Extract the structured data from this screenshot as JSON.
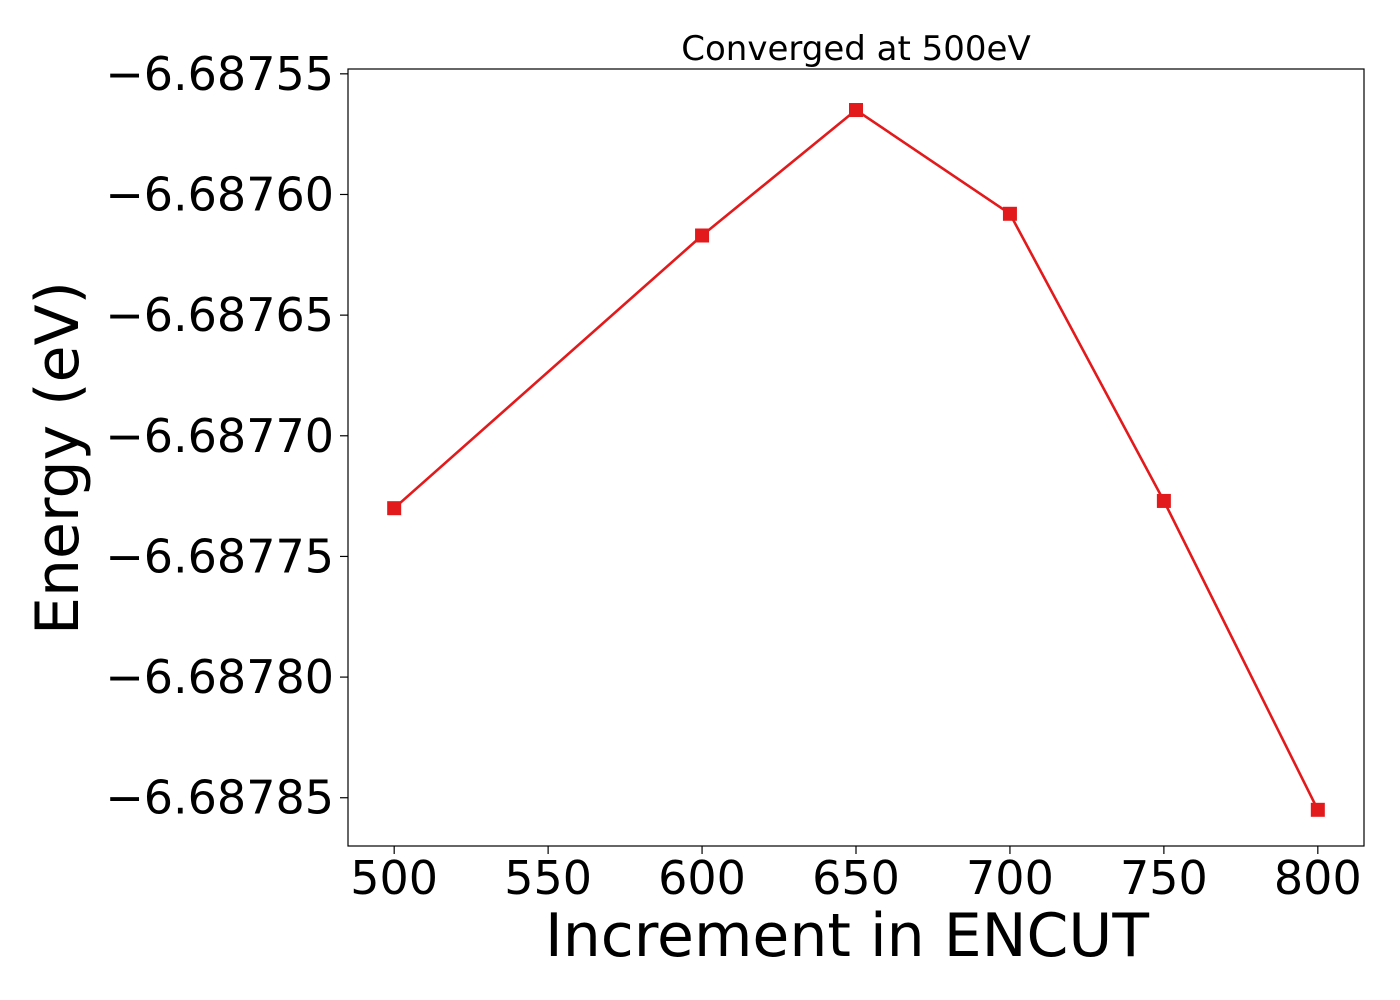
{
  "chart_data": {
    "type": "line",
    "title": "Converged at 500eV",
    "xlabel": "Increment in ENCUT",
    "ylabel": "Energy (eV)",
    "x": [
      500,
      600,
      650,
      700,
      750,
      800
    ],
    "series": [
      {
        "values": [
          -6.68773,
          -6.687617,
          -6.687565,
          -6.687608,
          -6.687727,
          -6.687855
        ],
        "color": "#e31a1c",
        "marker": "square"
      }
    ],
    "xlim": [
      485,
      815
    ],
    "ylim": [
      -6.68787,
      -6.687548
    ],
    "xticks": [
      500,
      550,
      600,
      650,
      700,
      750,
      800
    ],
    "xtick_labels": [
      "500",
      "550",
      "600",
      "650",
      "700",
      "750",
      "800"
    ],
    "yticks": [
      -6.68755,
      -6.6876,
      -6.68765,
      -6.6877,
      -6.68775,
      -6.6878,
      -6.68785
    ],
    "ytick_labels": [
      "−6.68755",
      "−6.68760",
      "−6.68765",
      "−6.68770",
      "−6.68775",
      "−6.68780",
      "−6.68785"
    ],
    "grid": false,
    "legend": "none"
  }
}
